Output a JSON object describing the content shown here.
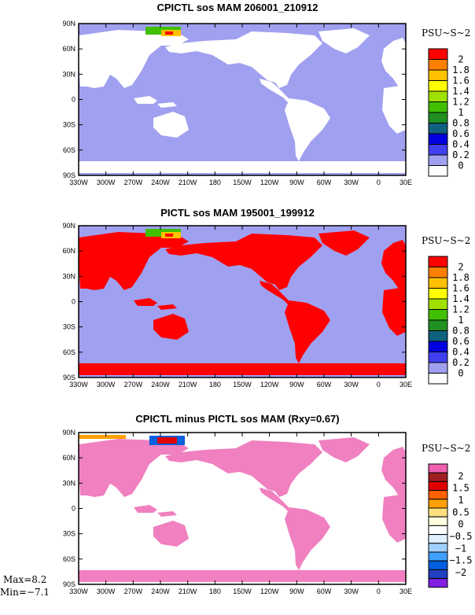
{
  "panels": [
    {
      "id": "cpictl",
      "title": "CPICTL sos MAM 206001_210912",
      "land_color": "#ffffff",
      "ocean_color": "#a0a0f0",
      "colorbar": {
        "unit": "PSU~S~2",
        "labels": [
          "2",
          "1.8",
          "1.6",
          "1.4",
          "1.2",
          "1",
          "0.8",
          "0.6",
          "0.4",
          "0.2",
          "0"
        ],
        "colors": [
          "#ff0000",
          "#ff8000",
          "#ffc000",
          "#ffff00",
          "#a0e000",
          "#40c000",
          "#209020",
          "#106080",
          "#0000e0",
          "#4040f0",
          "#a0a0f0",
          "#ffffff"
        ]
      }
    },
    {
      "id": "pictl",
      "title": "PICTL sos MAM 195001_199912",
      "land_color": "#ff0000",
      "ocean_color": "#a0a0f0",
      "colorbar": {
        "unit": "PSU~S~2",
        "labels": [
          "2",
          "1.8",
          "1.6",
          "1.4",
          "1.2",
          "1",
          "0.8",
          "0.6",
          "0.4",
          "0.2",
          "0"
        ],
        "colors": [
          "#ff0000",
          "#ff8000",
          "#ffc000",
          "#ffff00",
          "#a0e000",
          "#40c000",
          "#209020",
          "#106080",
          "#0000e0",
          "#4040f0",
          "#a0a0f0",
          "#ffffff"
        ]
      }
    },
    {
      "id": "diff",
      "title": "CPICTL minus PICTL sos MAM (Rxy=0.67)",
      "land_color": "#f080c0",
      "ocean_color": "#ffffff",
      "colorbar": {
        "unit": "PSU~S~2",
        "labels": [
          "2",
          "1.5",
          "1",
          "0.5",
          "0",
          "−0.5",
          "−1",
          "−1.5",
          "−2"
        ],
        "colors": [
          "#f060b0",
          "#a02020",
          "#e00000",
          "#ff6000",
          "#ffa000",
          "#ffe080",
          "#ffffe0",
          "#ffffff",
          "#e0f0ff",
          "#a0d0ff",
          "#40a0ff",
          "#0060e0",
          "#2040c0",
          "#8020e0"
        ]
      }
    }
  ],
  "x_ticks": [
    "330W",
    "300W",
    "270W",
    "240W",
    "210W",
    "180",
    "150W",
    "120W",
    "90W",
    "60W",
    "30W",
    "0",
    "30E"
  ],
  "y_ticks": [
    "90N",
    "60N",
    "30N",
    "0",
    "30S",
    "60S",
    "90S"
  ],
  "stats": {
    "max": "Max=8.2",
    "min": "Min=−7.1"
  }
}
